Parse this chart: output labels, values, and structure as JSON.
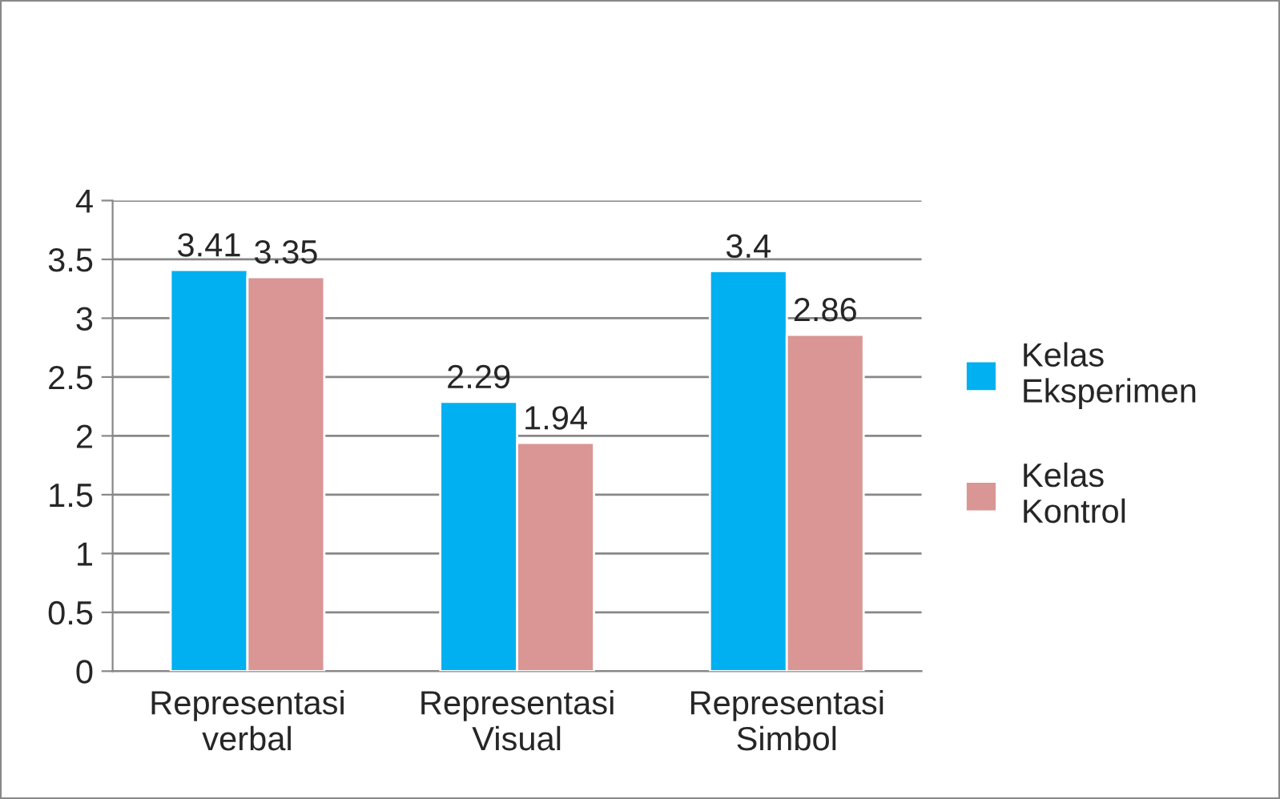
{
  "chart_data": {
    "type": "bar",
    "categories": [
      "Representasi\nverbal",
      "Representasi\nVisual",
      "Representasi\nSimbol"
    ],
    "series": [
      {
        "name": "Kelas\nEksperimen",
        "color": "#00b0f0",
        "values": [
          3.41,
          2.29,
          3.4
        ]
      },
      {
        "name": "Kelas\nKontrol",
        "color": "#d99694",
        "values": [
          3.35,
          1.94,
          2.86
        ]
      }
    ],
    "ylim": [
      0,
      4
    ],
    "yticks": [
      0,
      {
        "value": 0.5,
        "label": "0.5"
      },
      1,
      {
        "value": 1.5,
        "label": "1.5"
      },
      2,
      {
        "value": 2.5,
        "label": "2.5"
      },
      3,
      {
        "value": 3.5,
        "label": "3.5"
      },
      4
    ],
    "grid": "y",
    "legend": "right",
    "data_labels": true
  }
}
